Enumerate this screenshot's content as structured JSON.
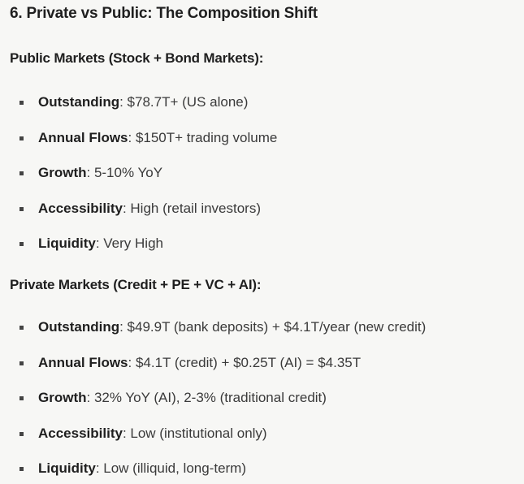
{
  "document": {
    "title": "6. Private vs Public: The Composition Shift",
    "sections": [
      {
        "heading": "Public Markets (Stock + Bond Markets):",
        "items": [
          {
            "term": "Outstanding",
            "value": ": $78.7T+ (US alone)"
          },
          {
            "term": "Annual Flows",
            "value": ": $150T+ trading volume"
          },
          {
            "term": "Growth",
            "value": ": 5-10% YoY"
          },
          {
            "term": "Accessibility",
            "value": ": High (retail investors)"
          },
          {
            "term": "Liquidity",
            "value": ": Very High"
          }
        ]
      },
      {
        "heading": "Private Markets (Credit + PE + VC + AI):",
        "items": [
          {
            "term": "Outstanding",
            "value": ": $49.9T (bank deposits) + $4.1T/year (new credit)"
          },
          {
            "term": "Annual Flows",
            "value": ": $4.1T (credit) + $0.25T (AI) = $4.35T"
          },
          {
            "term": "Growth",
            "value": ": 32% YoY (AI), 2-3% (traditional credit)"
          },
          {
            "term": "Accessibility",
            "value": ": Low (institutional only)"
          },
          {
            "term": "Liquidity",
            "value": ": Low (illiquid, long-term)"
          }
        ]
      }
    ]
  }
}
